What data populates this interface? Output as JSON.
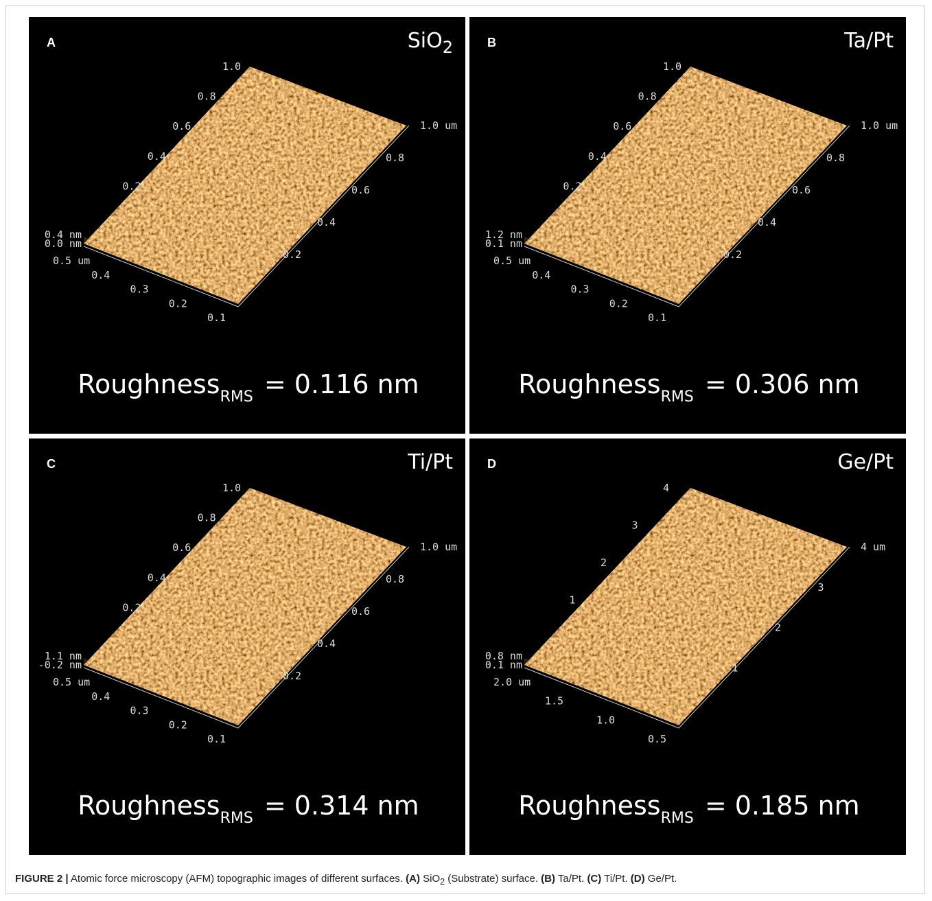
{
  "figure": {
    "panels": [
      {
        "letter": "A",
        "material": "SiO",
        "material_sub": "2",
        "roughness": "Roughness",
        "roughness_sub": "RMS",
        "roughness_value": "= 0.116 nm",
        "z_labels": [
          "0.4 nm",
          "0.0 nm"
        ],
        "front_labels": [
          "0.5 um",
          "0.4",
          "0.3",
          "0.2",
          "0.1"
        ],
        "right_labels": [
          "0.2",
          "0.4",
          "0.6",
          "0.8",
          "1.0 um"
        ],
        "back_labels": [
          "0.2",
          "0.4",
          "0.6",
          "0.8",
          "1.0"
        ]
      },
      {
        "letter": "B",
        "material": "Ta/Pt",
        "roughness": "Roughness",
        "roughness_sub": "RMS",
        "roughness_value": "= 0.306 nm",
        "z_labels": [
          "1.2 nm",
          "0.1 nm"
        ],
        "front_labels": [
          "0.5 um",
          "0.4",
          "0.3",
          "0.2",
          "0.1"
        ],
        "right_labels": [
          "0.2",
          "0.4",
          "0.6",
          "0.8",
          "1.0 um"
        ],
        "back_labels": [
          "0.2",
          "0.4",
          "0.6",
          "0.8",
          "1.0"
        ]
      },
      {
        "letter": "C",
        "material": "Ti/Pt",
        "roughness": "Roughness",
        "roughness_sub": "RMS",
        "roughness_value": "= 0.314 nm",
        "z_labels": [
          "1.1 nm",
          "-0.2 nm"
        ],
        "front_labels": [
          "0.5 um",
          "0.4",
          "0.3",
          "0.2",
          "0.1"
        ],
        "right_labels": [
          "0.2",
          "0.4",
          "0.6",
          "0.8",
          "1.0 um"
        ],
        "back_labels": [
          "0.2",
          "0.4",
          "0.6",
          "0.8",
          "1.0"
        ]
      },
      {
        "letter": "D",
        "material": "Ge/Pt",
        "roughness": "Roughness",
        "roughness_sub": "RMS",
        "roughness_value": "= 0.185 nm",
        "z_labels": [
          "0.8 nm",
          "0.1 nm"
        ],
        "front_labels": [
          "2.0 um",
          "1.5",
          "1.0",
          "0.5"
        ],
        "right_labels": [
          "1",
          "2",
          "3",
          "4 um"
        ],
        "back_labels": [
          "1",
          "2",
          "3",
          "4"
        ]
      }
    ],
    "caption": {
      "label": "FIGURE 2 |",
      "text": "Atomic force microscopy (AFM) topographic images of different surfaces.",
      "a": "(A)",
      "a_material": "SiO",
      "a_sub": "2",
      "a_text": "(Substrate) surface.",
      "b": "(B)",
      "b_text": "Ta/Pt.",
      "c": "(C)",
      "c_text": "Ti/Pt.",
      "d": "(D)",
      "d_text": "Ge/Pt."
    }
  }
}
